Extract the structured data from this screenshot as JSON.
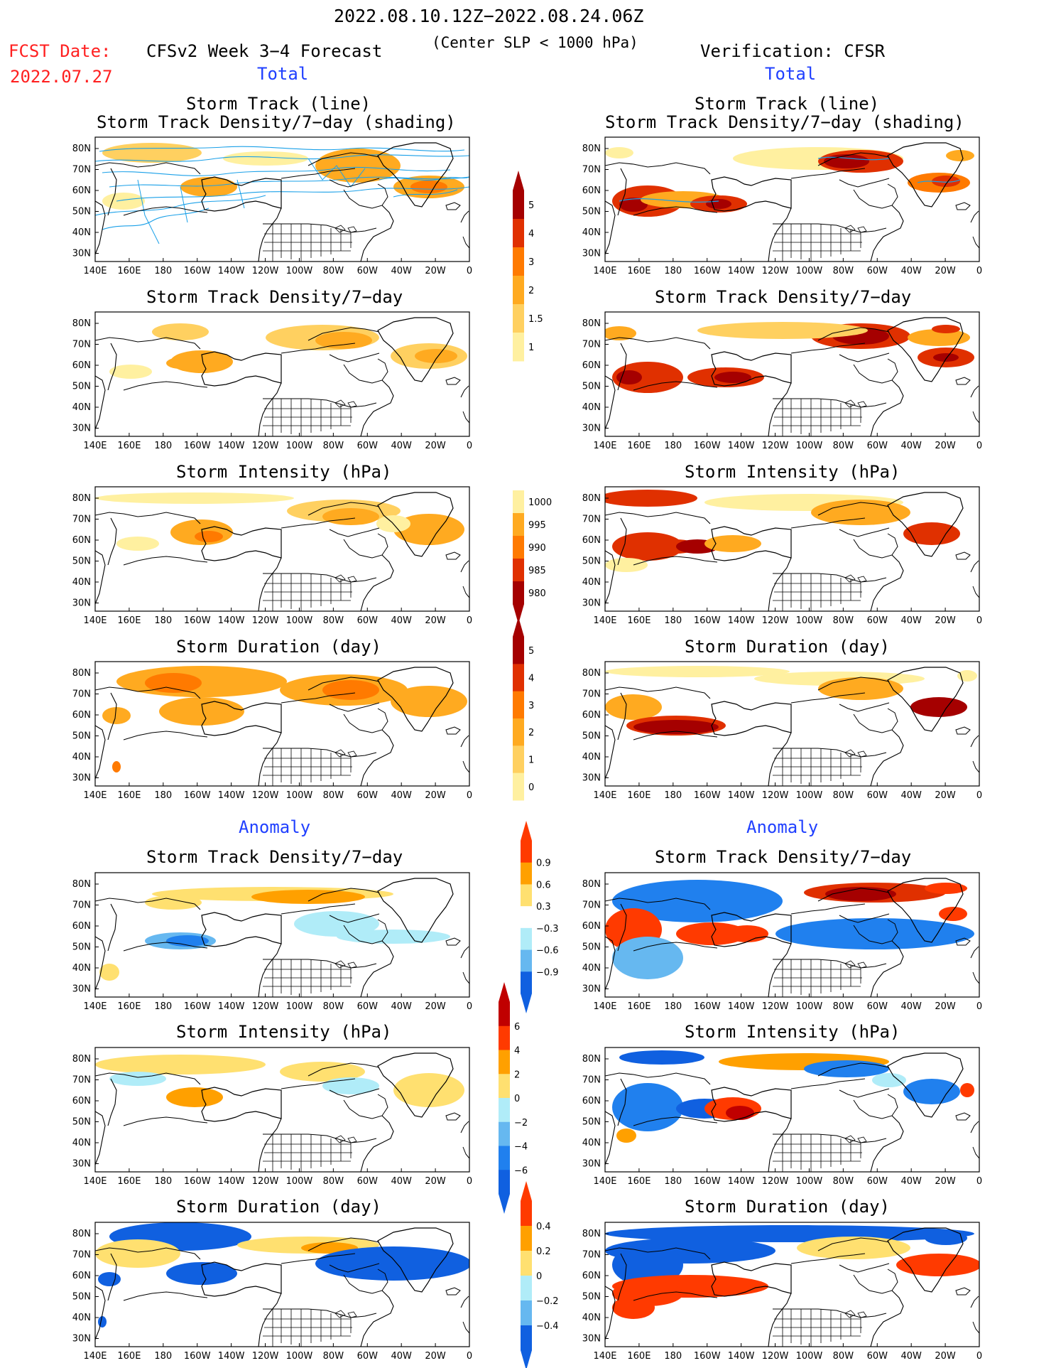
{
  "header": {
    "date_range": "2022.08.10.12Z−2022.08.24.06Z",
    "fcst_label": "FCST Date:",
    "fcst_date": "2022.07.27",
    "left_title": "CFSv2 Week 3−4 Forecast",
    "center_note": "(Center SLP < 1000 hPa)",
    "right_title": "Verification: CFSR"
  },
  "sections": {
    "total": "Total",
    "anomaly": "Anomaly"
  },
  "panel_titles": {
    "track_line": "Storm Track (line)",
    "track_shading": "Storm Track Density/7−day (shading)",
    "density": "Storm Track Density/7−day",
    "intensity": "Storm Intensity (hPa)",
    "duration": "Storm Duration (day)"
  },
  "axes": {
    "lat_labels": [
      "80N",
      "70N",
      "60N",
      "50N",
      "40N",
      "30N"
    ],
    "lon_labels": [
      "140E",
      "160E",
      "180",
      "160W",
      "140W",
      "120W",
      "100W",
      "80W",
      "60W",
      "40W",
      "20W",
      "0"
    ]
  },
  "colorbars": {
    "density": {
      "labels": [
        "5",
        "4",
        "3",
        "2",
        "1.5",
        "1"
      ],
      "colors": [
        "#a50000",
        "#e03000",
        "#ff7a00",
        "#ffaa20",
        "#ffd060",
        "#fff0a0"
      ]
    },
    "intensity": {
      "labels": [
        "1000",
        "995",
        "990",
        "985",
        "980"
      ],
      "colors": [
        "#fff0a0",
        "#ffaa20",
        "#ff7a00",
        "#e03000",
        "#a50000"
      ]
    },
    "duration": {
      "labels": [
        "5",
        "4",
        "3",
        "2",
        "1",
        "0"
      ],
      "colors": [
        "#a50000",
        "#e03000",
        "#ff7a00",
        "#ffaa20",
        "#ffd060",
        "#fff0a0"
      ]
    },
    "density_anom": {
      "labels": [
        "0.9",
        "0.6",
        "0.3",
        "−0.3",
        "−0.6",
        "−0.9"
      ],
      "colors": [
        "#ff3a00",
        "#ffa000",
        "#ffe070",
        "#ffffff",
        "#b0ecf8",
        "#66b8f0",
        "#1060e0"
      ]
    },
    "intensity_anom": {
      "labels": [
        "6",
        "4",
        "2",
        "0",
        "−2",
        "−4",
        "−6"
      ],
      "colors": [
        "#c00000",
        "#ff3a00",
        "#ffa000",
        "#ffe070",
        "#b0ecf8",
        "#66b8f0",
        "#2080ee",
        "#1060e0"
      ]
    },
    "duration_anom": {
      "labels": [
        "0.4",
        "0.2",
        "0",
        "−0.2",
        "−0.4"
      ],
      "colors": [
        "#ff3a00",
        "#ffa000",
        "#ffe070",
        "#b0ecf8",
        "#66b8f0",
        "#1060e0"
      ]
    }
  }
}
